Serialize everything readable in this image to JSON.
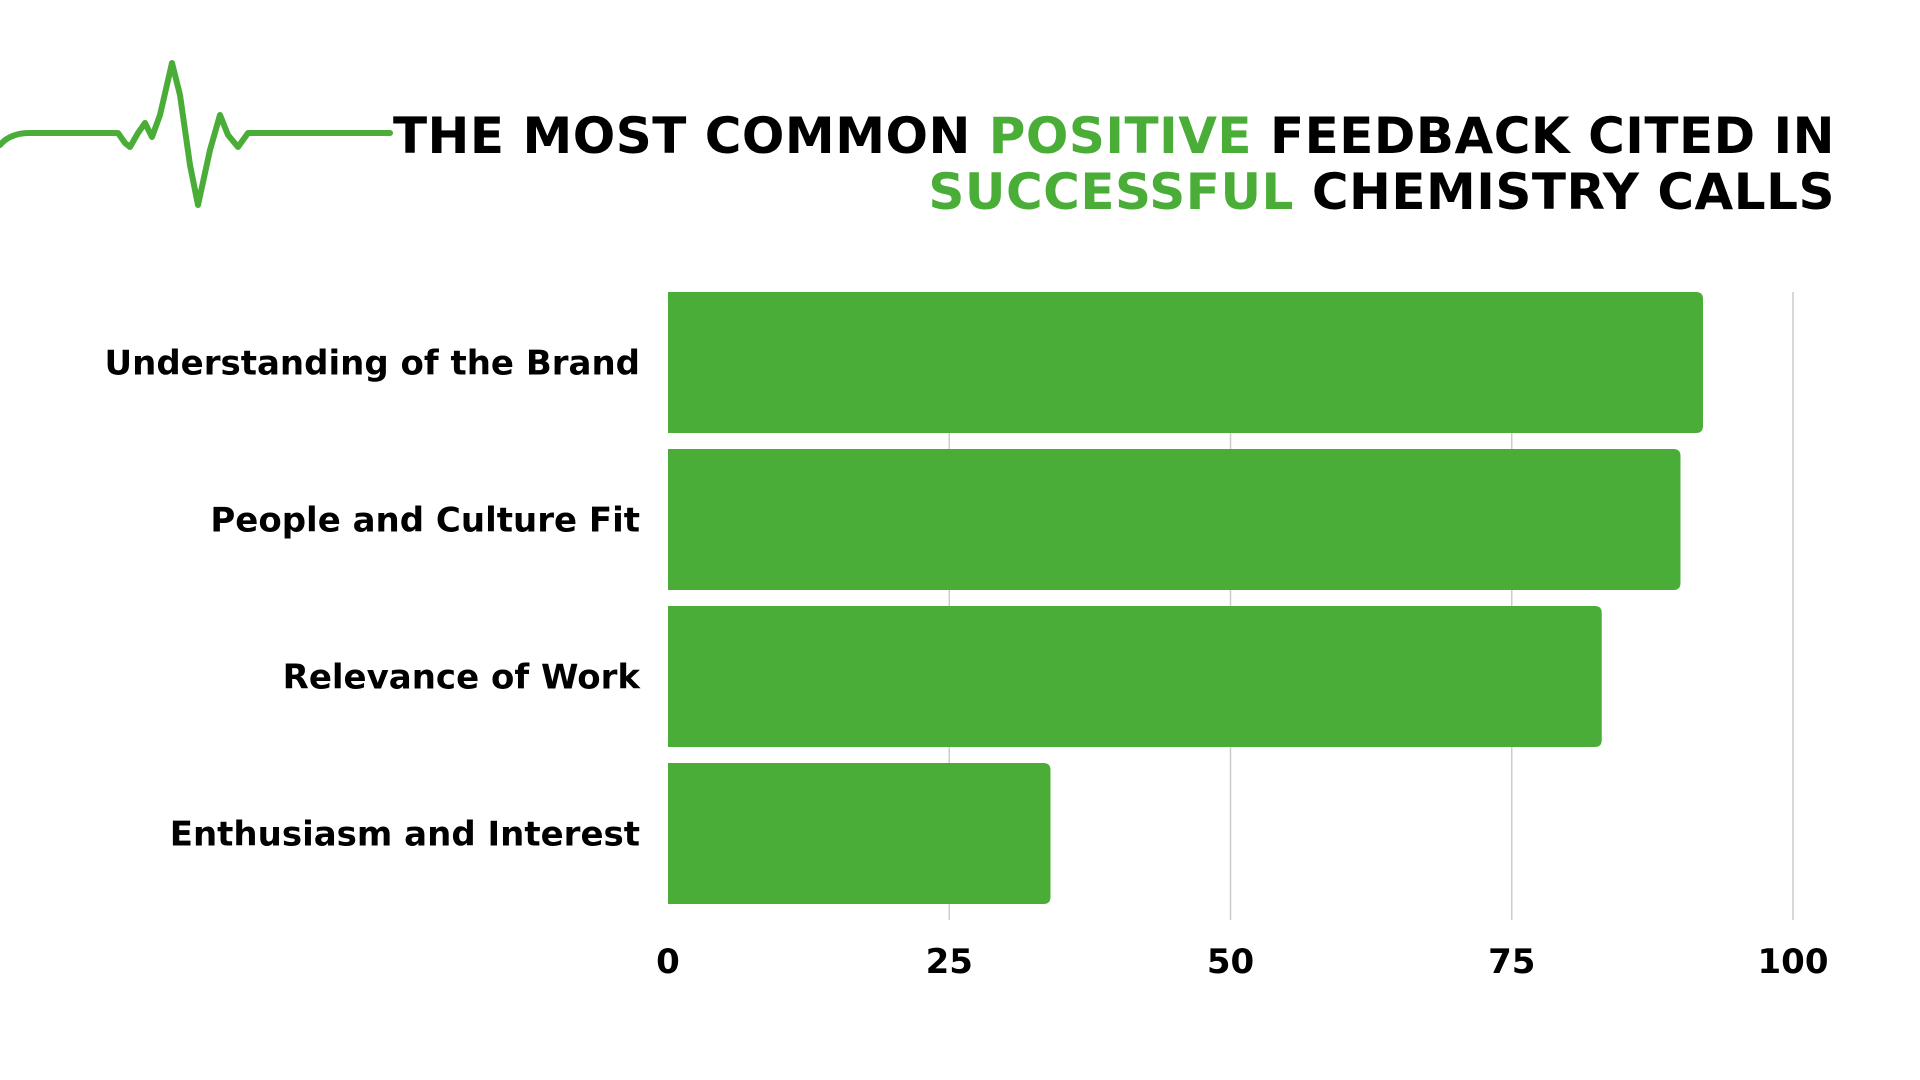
{
  "title": {
    "part1": "The most common ",
    "accent1": "positive",
    "part2": " feedback cited in",
    "accent2": "successful",
    "part3": " chemistry calls"
  },
  "colors": {
    "accent": "#4aad37",
    "bar": "#4aad37",
    "grid": "#cccccc",
    "text": "#000000"
  },
  "decoration": {
    "icon": "heartbeat-pulse-icon"
  },
  "chart_data": {
    "type": "bar",
    "orientation": "horizontal",
    "categories": [
      "Understanding of the Brand",
      "People and Culture Fit",
      "Relevance of Work",
      "Enthusiasm and Interest"
    ],
    "values": [
      92,
      90,
      83,
      34
    ],
    "xlim": [
      0,
      100
    ],
    "xticks": [
      0,
      25,
      50,
      75,
      100
    ],
    "grid": true,
    "legend": "none",
    "xlabel": "",
    "ylabel": ""
  }
}
